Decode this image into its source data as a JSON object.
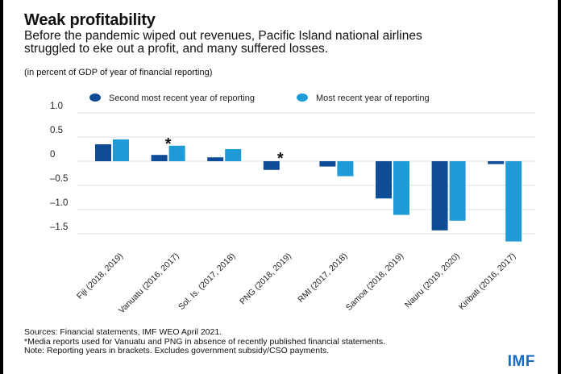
{
  "chart_data": {
    "type": "bar",
    "title": "Weak profitability",
    "subtitle": "Before the pandemic wiped out revenues, Pacific Island national airlines struggled to eke out a profit, and many suffered losses.",
    "ylabel": "(in percent of GDP of year of financial reporting)",
    "xlabel": "",
    "ylim": [
      -1.75,
      1.0
    ],
    "yticks": [
      1.0,
      0.5,
      0,
      -0.5,
      -1.0,
      -1.5
    ],
    "ytick_labels": [
      "1.0",
      "0.5",
      "0",
      "–0.5",
      "–1.0",
      "–1.5"
    ],
    "grid": true,
    "legend_position": "top",
    "categories": [
      "Fiji  (2018, 2019)",
      "Vanuatu (2016, 2017)",
      "Sol. Is. (2017, 2018)",
      "PNG (2018, 2019)",
      "RMI (2017, 2018)",
      "Samoa (2018, 2019)",
      "Nauru (2019, 2020)",
      "Kiribati (2016, 2017)"
    ],
    "series": [
      {
        "name": "Second most recent year of reporting",
        "color": "#0f4c97",
        "values": [
          0.35,
          0.13,
          0.08,
          -0.18,
          -0.11,
          -0.77,
          -1.43,
          -0.06
        ]
      },
      {
        "name": "Most recent year of reporting",
        "color": "#1e9ad6",
        "values": [
          0.45,
          0.32,
          0.25,
          null,
          -0.31,
          -1.11,
          -1.23,
          -1.66
        ]
      }
    ],
    "annotations": [
      {
        "category": "Vanuatu (2016, 2017)",
        "text": "*"
      },
      {
        "category": "PNG (2018, 2019)",
        "text": "*"
      }
    ]
  },
  "notes": [
    "Sources: Financial statements, IMF WEO April 2021.",
    "*Media reports used for Vanuatu and PNG in absence of recently published financial statements.",
    "Note: Reporting years in brackets. Excludes government subsidy/CSO payments."
  ],
  "logo": "IMF"
}
